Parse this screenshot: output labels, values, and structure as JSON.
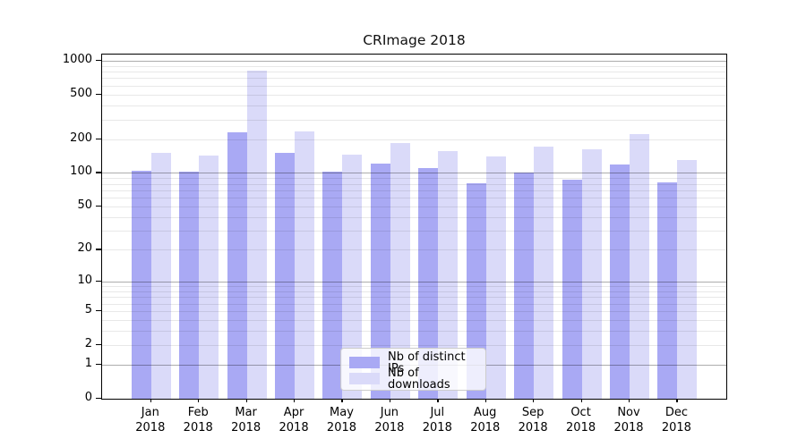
{
  "title": "CRImage 2018",
  "chart_data": {
    "type": "bar",
    "title": "CRImage 2018",
    "scale": "log10(1+y)",
    "grid": true,
    "legend_position": "lower center",
    "categories": [
      "Jan 2018",
      "Feb 2018",
      "Mar 2018",
      "Apr 2018",
      "May 2018",
      "Jun 2018",
      "Jul 2018",
      "Aug 2018",
      "Sep 2018",
      "Oct 2018",
      "Nov 2018",
      "Dec 2018"
    ],
    "x_tick_lines": [
      [
        "Jan",
        "2018"
      ],
      [
        "Feb",
        "2018"
      ],
      [
        "Mar",
        "2018"
      ],
      [
        "Apr",
        "2018"
      ],
      [
        "May",
        "2018"
      ],
      [
        "Jun",
        "2018"
      ],
      [
        "Jul",
        "2018"
      ],
      [
        "Aug",
        "2018"
      ],
      [
        "Sep",
        "2018"
      ],
      [
        "Oct",
        "2018"
      ],
      [
        "Nov",
        "2018"
      ],
      [
        "Dec",
        "2018"
      ]
    ],
    "series": [
      {
        "name": "Nb of distinct IPs",
        "color": "#a9a9f4",
        "values": [
          105,
          103,
          230,
          151,
          103,
          122,
          111,
          81,
          101,
          87,
          119,
          83
        ]
      },
      {
        "name": "Nb of downloads",
        "color": "#dadaf9",
        "values": [
          151,
          144,
          812,
          236,
          145,
          186,
          156,
          140,
          173,
          163,
          222,
          131
        ]
      }
    ],
    "y_ticks": [
      {
        "value": 0,
        "label": "0"
      },
      {
        "value": 1,
        "label": "1"
      },
      {
        "value": 2,
        "label": "2"
      },
      {
        "value": 5,
        "label": "5"
      },
      {
        "value": 10,
        "label": "10"
      },
      {
        "value": 20,
        "label": "20"
      },
      {
        "value": 50,
        "label": "50"
      },
      {
        "value": 100,
        "label": "100"
      },
      {
        "value": 200,
        "label": "200"
      },
      {
        "value": 500,
        "label": "500"
      },
      {
        "value": 1000,
        "label": "1000"
      }
    ],
    "major_grid_values": [
      1,
      10,
      100,
      1000
    ],
    "ylim": [
      0,
      1135
    ]
  },
  "colors": {
    "distinct_ips": "#a9a9f4",
    "downloads": "#dadaf9",
    "major_grid": "#b0b0b0",
    "minor_grid": "#ececec",
    "axis": "#000000",
    "legend_border": "#cccccc"
  }
}
